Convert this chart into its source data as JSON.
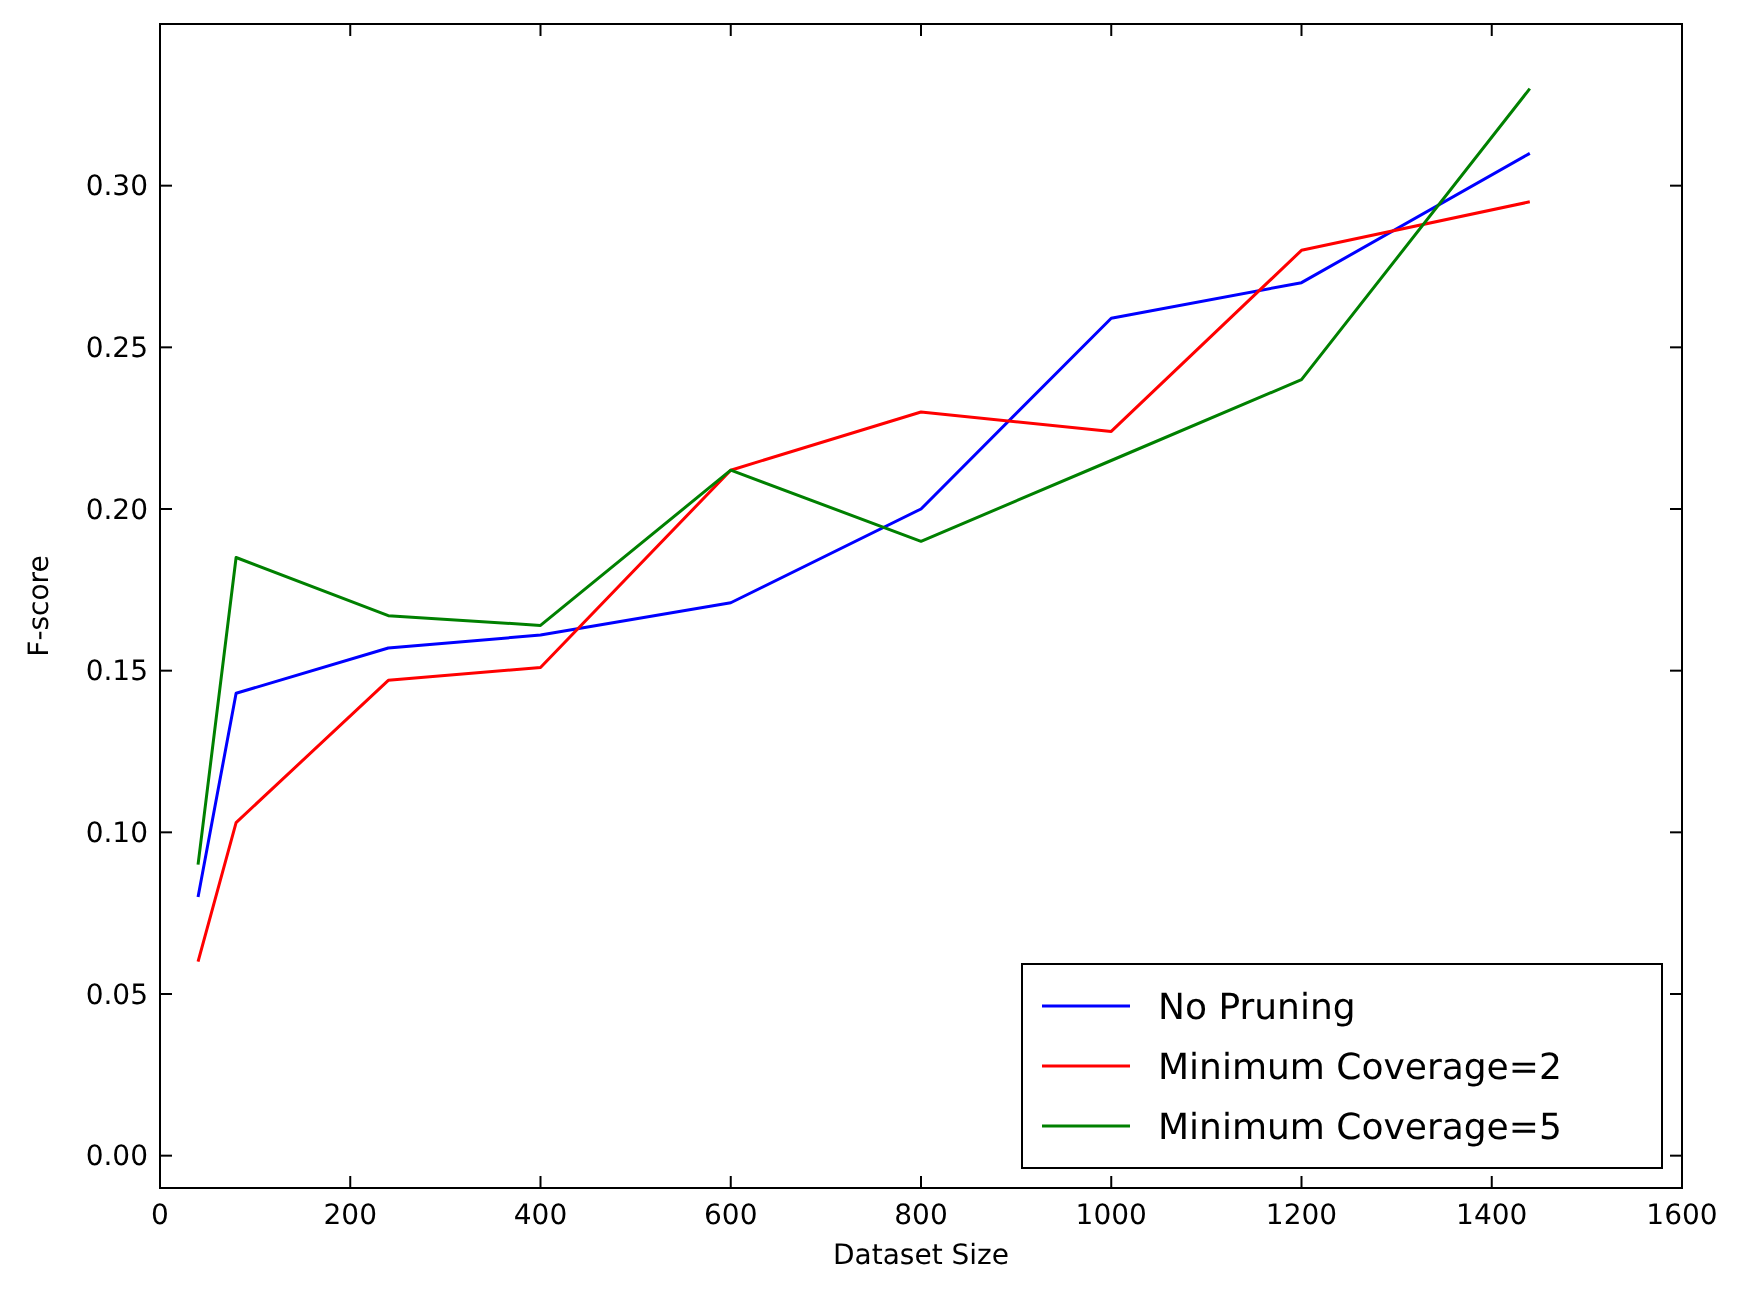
{
  "chart_data": {
    "type": "line",
    "xlabel": "Dataset Size",
    "ylabel": "F-score",
    "x": [
      40,
      80,
      240,
      400,
      600,
      800,
      1000,
      1200,
      1440
    ],
    "series": [
      {
        "name": "No Pruning",
        "color": "#0000ff",
        "values": [
          0.08,
          0.143,
          0.157,
          0.161,
          0.171,
          0.2,
          0.259,
          0.27,
          0.31
        ]
      },
      {
        "name": "Minimum Coverage=2",
        "color": "#ff0000",
        "values": [
          0.06,
          0.103,
          0.147,
          0.151,
          0.212,
          0.23,
          0.224,
          0.28,
          0.295
        ]
      },
      {
        "name": "Minimum Coverage=5",
        "color": "#008000",
        "values": [
          0.09,
          0.185,
          0.167,
          0.164,
          0.212,
          0.19,
          0.215,
          0.24,
          0.33
        ]
      }
    ],
    "xlim": [
      0,
      1600
    ],
    "xticks": [
      0,
      200,
      400,
      600,
      800,
      1000,
      1200,
      1400,
      1600
    ],
    "ylim": [
      -0.01,
      0.35
    ],
    "yticks": [
      {
        "value": 0,
        "label": "0.00"
      },
      {
        "value": 0.05,
        "label": "0.05"
      },
      {
        "value": 0.1,
        "label": "0.10"
      },
      {
        "value": 0.15,
        "label": "0.15"
      },
      {
        "value": 0.2,
        "label": "0.20"
      },
      {
        "value": 0.25,
        "label": "0.25"
      },
      {
        "value": 0.3,
        "label": "0.30"
      }
    ],
    "grid": false,
    "legend": "bottom right",
    "marker": "none",
    "line_style": "solid"
  }
}
